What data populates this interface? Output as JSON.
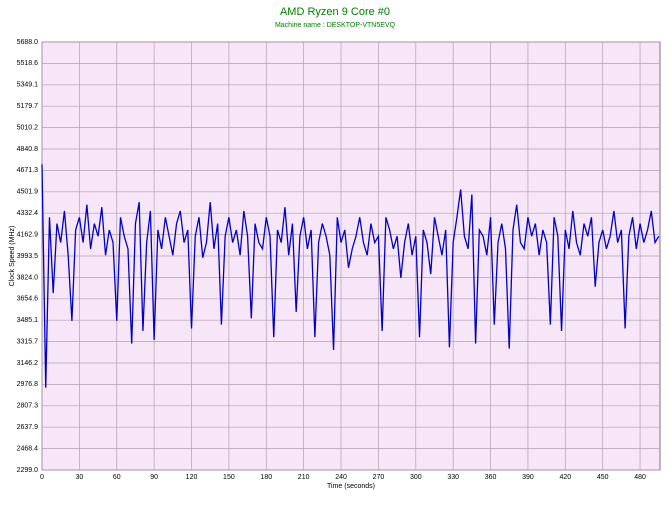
{
  "chart_data": {
    "type": "line",
    "title": "AMD Ryzen 9 Core #0",
    "subtitle": "Machine name : DESKTOP-VTN5EVQ",
    "x_label": "Time (seconds)",
    "y_label": "Clock Speed (MHz)",
    "xlim": [
      0,
      496
    ],
    "xticks": [
      0,
      30,
      60,
      90,
      120,
      150,
      180,
      210,
      240,
      270,
      300,
      330,
      360,
      390,
      420,
      450,
      480
    ],
    "ylim": [
      2299,
      5688
    ],
    "yticks": [
      {
        "value": 2299,
        "label": "2299.0"
      },
      2468.4,
      2637.9,
      2807.3,
      2976.8,
      3146.2,
      3315.7,
      3485.1,
      3654.6,
      {
        "value": 3824,
        "label": "3824.0"
      },
      3993.5,
      4162.9,
      4332.4,
      4501.9,
      4671.3,
      4840.8,
      5010.2,
      5179.7,
      5349.1,
      5518.6,
      {
        "value": 5688,
        "label": "5688.0"
      }
    ],
    "grid": true,
    "x": [
      0,
      3,
      6,
      9,
      12,
      15,
      18,
      21,
      24,
      27,
      30,
      33,
      36,
      39,
      42,
      45,
      48,
      51,
      54,
      57,
      60,
      63,
      66,
      69,
      72,
      75,
      78,
      81,
      84,
      87,
      90,
      93,
      96,
      99,
      102,
      105,
      108,
      111,
      114,
      117,
      120,
      123,
      126,
      129,
      132,
      135,
      138,
      141,
      144,
      147,
      150,
      153,
      156,
      159,
      162,
      165,
      168,
      171,
      174,
      177,
      180,
      183,
      186,
      189,
      192,
      195,
      198,
      201,
      204,
      207,
      210,
      213,
      216,
      219,
      222,
      225,
      228,
      231,
      234,
      237,
      240,
      243,
      246,
      249,
      252,
      255,
      258,
      261,
      264,
      267,
      270,
      273,
      276,
      279,
      282,
      285,
      288,
      291,
      294,
      297,
      300,
      303,
      306,
      309,
      312,
      315,
      318,
      321,
      324,
      327,
      330,
      333,
      336,
      339,
      342,
      345,
      348,
      351,
      354,
      357,
      360,
      363,
      366,
      369,
      372,
      375,
      378,
      381,
      384,
      387,
      390,
      393,
      396,
      399,
      402,
      405,
      408,
      411,
      414,
      417,
      420,
      423,
      426,
      429,
      432,
      435,
      438,
      441,
      444,
      447,
      450,
      453,
      456,
      459,
      462,
      465,
      468,
      471,
      474,
      477,
      480,
      483,
      486,
      489,
      492,
      495
    ],
    "series": [
      {
        "name": "Core #0",
        "color": "#0000c8",
        "values": [
          4720,
          2950,
          4300,
          3700,
          4250,
          4100,
          4350,
          4000,
          3480,
          4200,
          4300,
          4100,
          4400,
          4050,
          4250,
          4150,
          4380,
          4000,
          4200,
          4100,
          3480,
          4300,
          4150,
          4050,
          3300,
          4250,
          4420,
          3400,
          4100,
          4350,
          3330,
          4200,
          4050,
          4300,
          4150,
          4000,
          4250,
          4350,
          4100,
          4200,
          3420,
          4150,
          4300,
          3980,
          4100,
          4420,
          4050,
          4250,
          3450,
          4150,
          4300,
          4100,
          4200,
          4000,
          4350,
          4150,
          3500,
          4250,
          4100,
          4050,
          4300,
          4150,
          3350,
          4200,
          4100,
          4380,
          4000,
          4250,
          3550,
          4150,
          4300,
          4050,
          4200,
          3350,
          4100,
          4250,
          4150,
          4000,
          3250,
          4300,
          4100,
          4200,
          3900,
          4050,
          4150,
          4300,
          4100,
          4000,
          4250,
          4100,
          4150,
          3400,
          4300,
          4200,
          4050,
          4150,
          3820,
          4100,
          4250,
          4000,
          4150,
          3350,
          4200,
          4100,
          3850,
          4300,
          4150,
          4000,
          4200,
          3270,
          4100,
          4300,
          4520,
          4150,
          4050,
          4480,
          3300,
          4200,
          4150,
          4000,
          4300,
          3450,
          4100,
          4250,
          4050,
          3260,
          4200,
          4400,
          4100,
          4050,
          4300,
          4150,
          4250,
          4000,
          4200,
          4100,
          3450,
          4300,
          4150,
          3400,
          4200,
          4050,
          4350,
          4100,
          4000,
          4250,
          4150,
          4300,
          3750,
          4100,
          4200,
          4050,
          4150,
          4350,
          4100,
          4200,
          3420,
          4150,
          4300,
          4050,
          4250,
          4100,
          4200,
          4350,
          4100,
          4150
        ]
      }
    ]
  }
}
